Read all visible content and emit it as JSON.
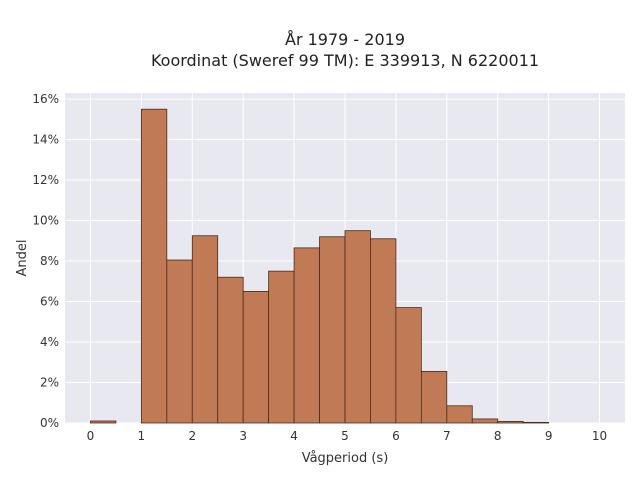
{
  "chart_data": {
    "type": "bar",
    "title_lines": [
      "År 1979 - 2019",
      "Koordinat (Sweref 99 TM): E 339913, N 6220011"
    ],
    "xlabel": "Vågperiod (s)",
    "ylabel": "Andel",
    "xlim": [
      -0.5,
      10.5
    ],
    "ylim": [
      0,
      16.3
    ],
    "x_ticks": [
      0,
      1,
      2,
      3,
      4,
      5,
      6,
      7,
      8,
      9,
      10
    ],
    "y_ticks": [
      0,
      2,
      4,
      6,
      8,
      10,
      12,
      14,
      16
    ],
    "y_tick_suffix": "%",
    "grid": true,
    "bin_width": 0.5,
    "bins": [
      {
        "start": 0.0,
        "value": 0.1
      },
      {
        "start": 1.0,
        "value": 15.5
      },
      {
        "start": 1.5,
        "value": 8.05
      },
      {
        "start": 2.0,
        "value": 9.25
      },
      {
        "start": 2.5,
        "value": 7.2
      },
      {
        "start": 3.0,
        "value": 6.5
      },
      {
        "start": 3.5,
        "value": 7.5
      },
      {
        "start": 4.0,
        "value": 8.65
      },
      {
        "start": 4.5,
        "value": 9.2
      },
      {
        "start": 5.0,
        "value": 9.5
      },
      {
        "start": 5.5,
        "value": 9.1
      },
      {
        "start": 6.0,
        "value": 5.7
      },
      {
        "start": 6.5,
        "value": 2.55
      },
      {
        "start": 7.0,
        "value": 0.85
      },
      {
        "start": 7.5,
        "value": 0.2
      },
      {
        "start": 8.0,
        "value": 0.08
      },
      {
        "start": 8.5,
        "value": 0.03
      }
    ],
    "colors": {
      "bar_fill": "#c07a55",
      "bar_edge": "#4a2c1c",
      "plot_bg": "#e8e8f0",
      "grid": "#ffffff"
    }
  }
}
